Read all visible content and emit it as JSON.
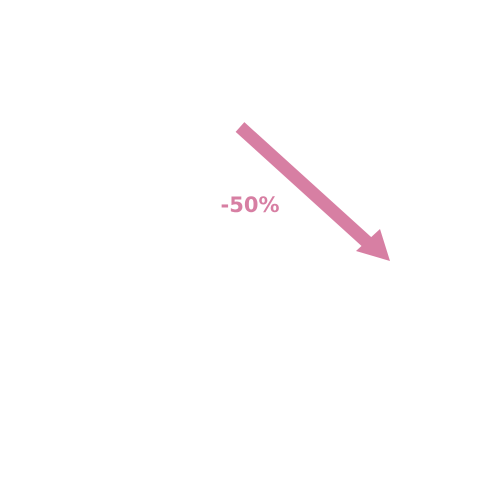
{
  "annotation": {
    "label": "-50%"
  }
}
